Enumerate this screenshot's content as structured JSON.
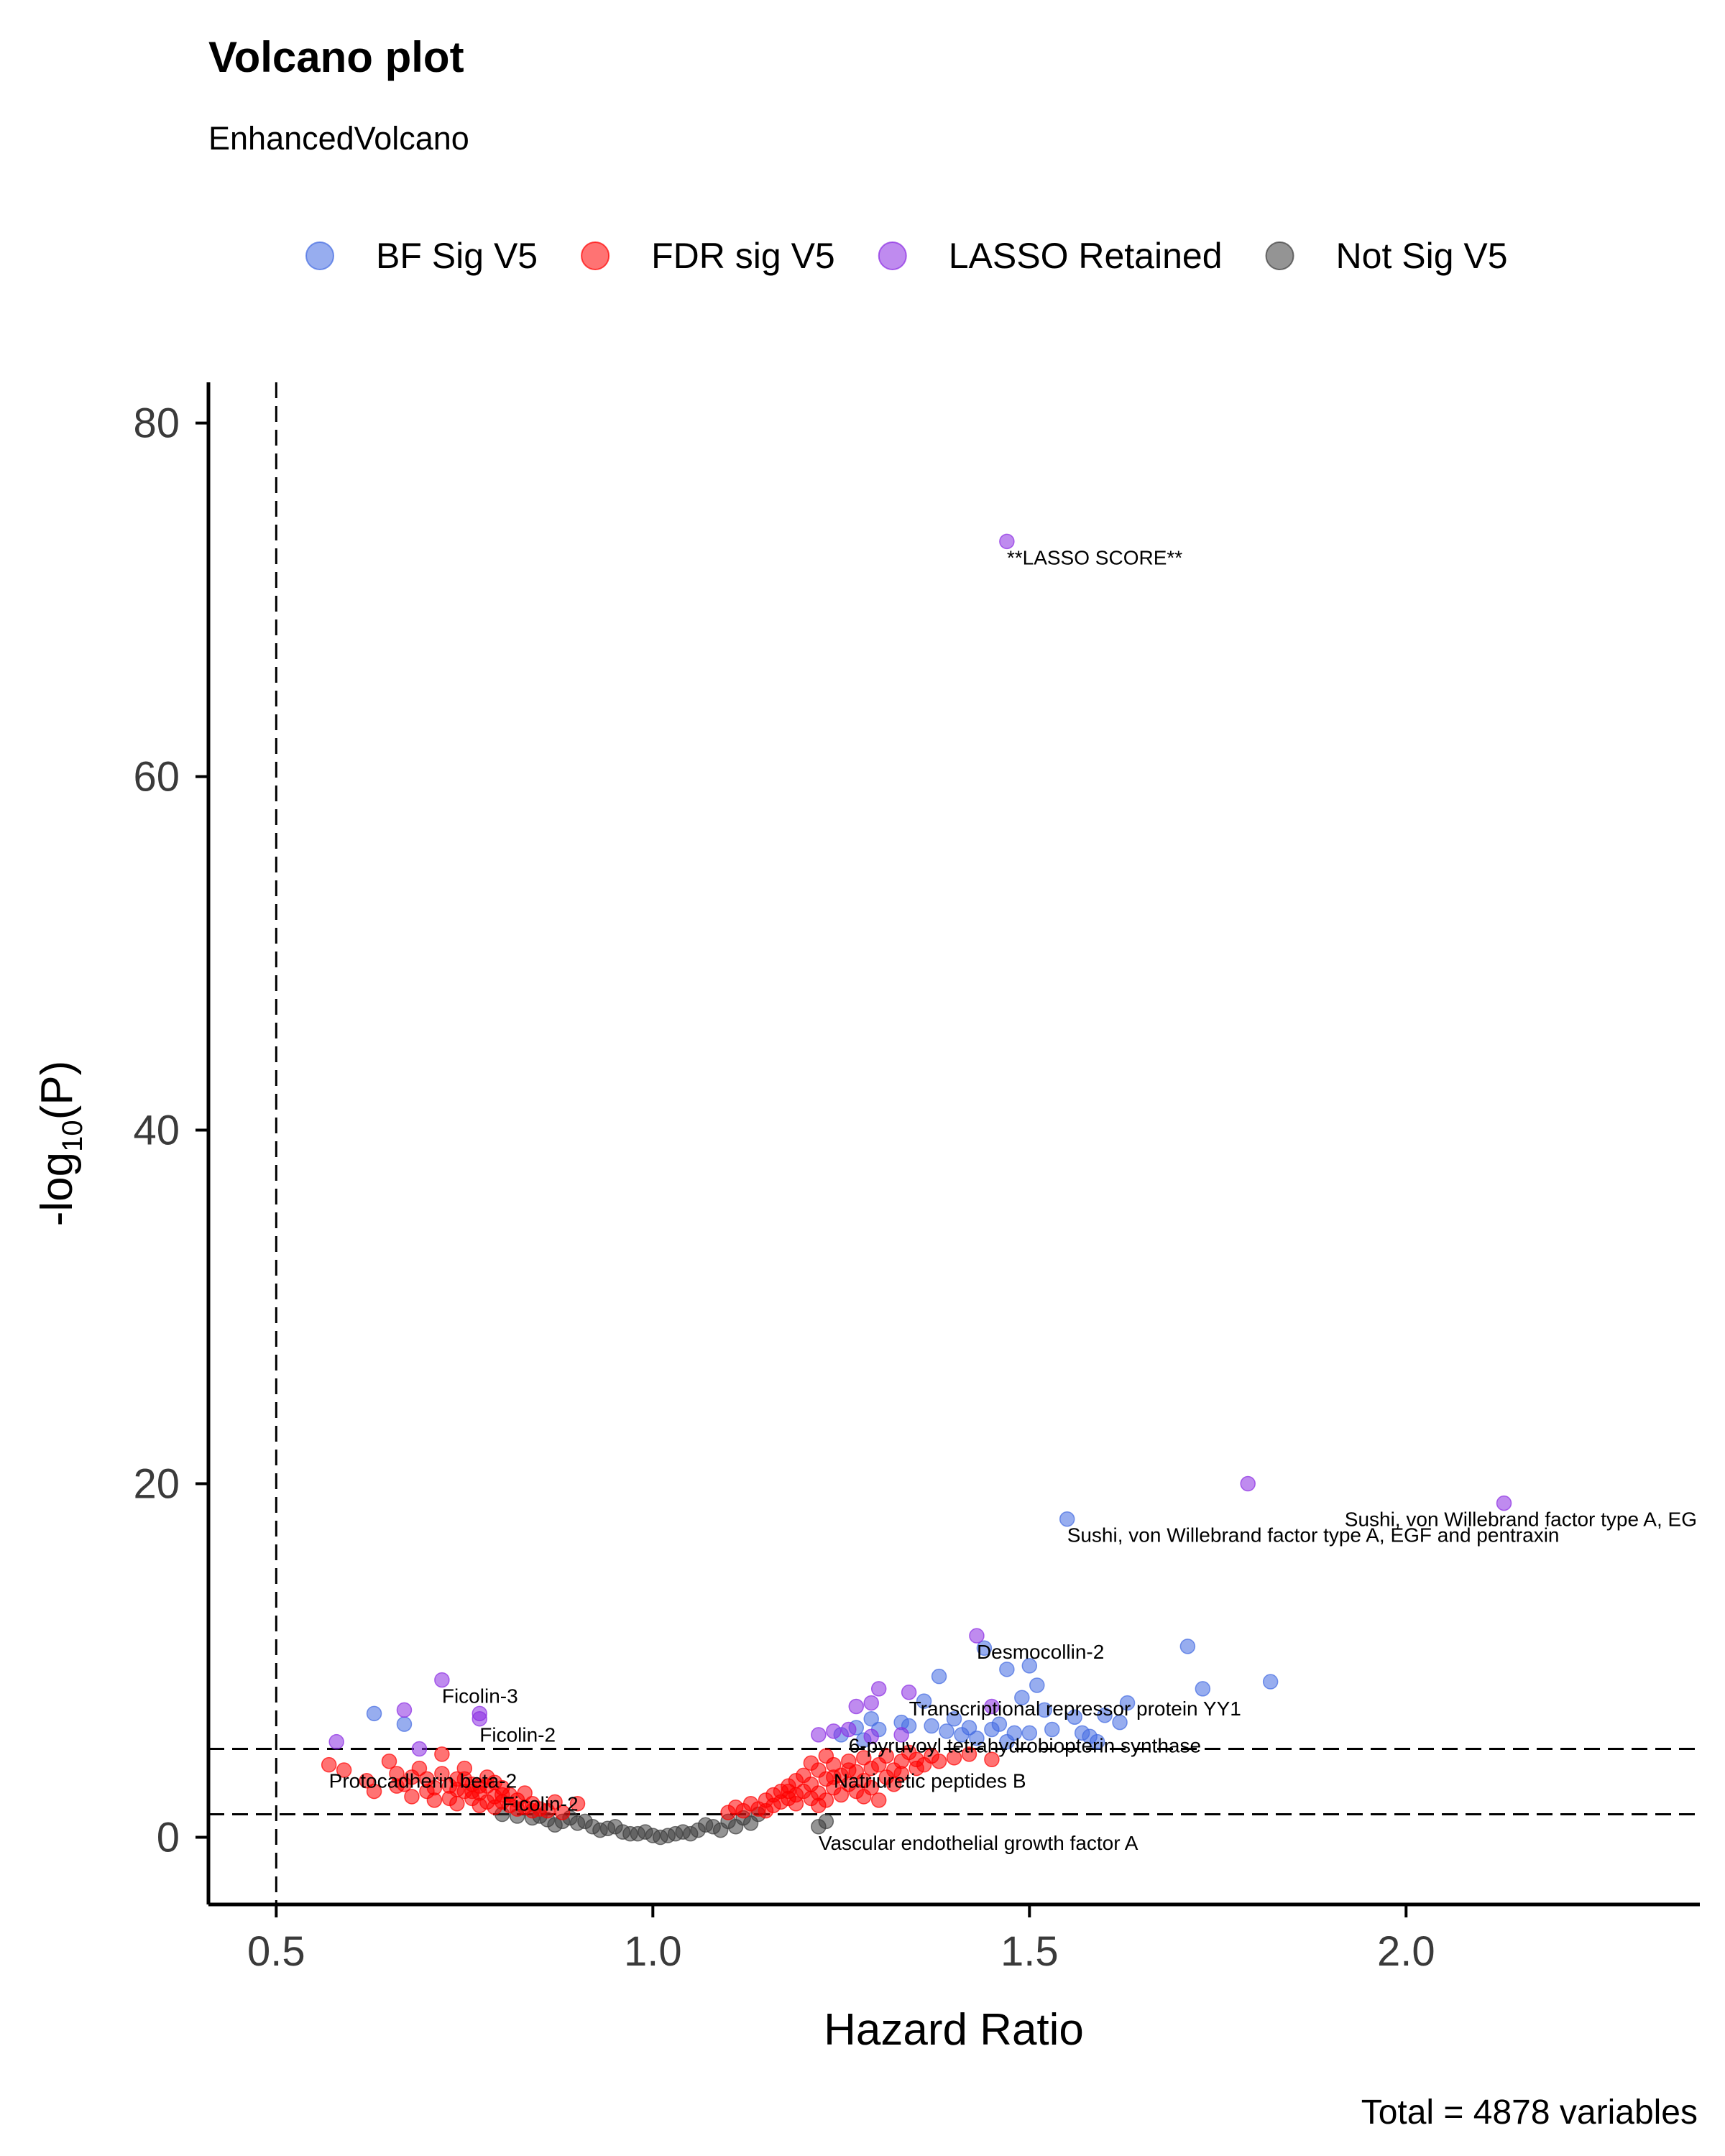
{
  "chart_data": {
    "type": "scatter",
    "title": "Volcano plot",
    "subtitle": "EnhancedVolcano",
    "xlabel": "Hazard Ratio",
    "ylabel_main": "-log",
    "ylabel_sub": "10",
    "ylabel_tail": "(P)",
    "caption": "Total = 4878 variables",
    "xlim": [
      0.41,
      2.39
    ],
    "ylim": [
      -3.8,
      82.3
    ],
    "x_ticks": [
      0.5,
      1.0,
      1.5,
      2.0
    ],
    "x_tick_labels": [
      "0.5",
      "1.0",
      "1.5",
      "2.0"
    ],
    "y_ticks": [
      0,
      20,
      40,
      60,
      80
    ],
    "y_tick_labels": [
      "0",
      "20",
      "40",
      "60",
      "80"
    ],
    "vlines": [
      0.5
    ],
    "hlines": [
      1.3,
      5.0
    ],
    "grid": false,
    "legend_position": "top",
    "series": [
      {
        "name": "BF Sig V5",
        "color": "#4169E1",
        "points": [
          [
            0.63,
            7.0
          ],
          [
            0.67,
            6.4
          ],
          [
            1.38,
            9.1
          ],
          [
            1.44,
            10.7
          ],
          [
            1.47,
            9.5
          ],
          [
            1.5,
            9.7
          ],
          [
            1.51,
            8.6
          ],
          [
            1.49,
            7.9
          ],
          [
            1.52,
            7.2
          ],
          [
            1.55,
            18.0
          ],
          [
            1.56,
            6.8
          ],
          [
            1.58,
            5.7
          ],
          [
            1.6,
            6.9
          ],
          [
            1.63,
            7.6
          ],
          [
            1.62,
            6.5
          ],
          [
            1.71,
            10.8
          ],
          [
            1.73,
            8.4
          ],
          [
            1.82,
            8.8
          ],
          [
            1.36,
            7.7
          ],
          [
            1.4,
            6.7
          ],
          [
            1.42,
            6.2
          ],
          [
            1.46,
            6.4
          ],
          [
            1.48,
            5.9
          ],
          [
            1.53,
            6.1
          ],
          [
            1.34,
            6.3
          ],
          [
            1.3,
            6.1
          ],
          [
            1.28,
            5.5
          ],
          [
            1.27,
            6.2
          ],
          [
            1.25,
            5.8
          ],
          [
            1.39,
            6.0
          ],
          [
            1.43,
            5.6
          ],
          [
            1.47,
            5.4
          ],
          [
            1.5,
            5.9
          ],
          [
            1.45,
            6.1
          ],
          [
            1.37,
            6.3
          ],
          [
            1.57,
            5.9
          ],
          [
            1.59,
            5.4
          ],
          [
            1.29,
            6.7
          ],
          [
            1.33,
            6.5
          ],
          [
            1.41,
            5.8
          ]
        ]
      },
      {
        "name": "FDR sig V5",
        "color": "#FF0000",
        "points": [
          [
            0.57,
            4.1
          ],
          [
            0.59,
            3.8
          ],
          [
            0.62,
            3.2
          ],
          [
            0.63,
            2.6
          ],
          [
            0.65,
            4.3
          ],
          [
            0.66,
            3.6
          ],
          [
            0.67,
            3.0
          ],
          [
            0.68,
            2.3
          ],
          [
            0.69,
            3.9
          ],
          [
            0.7,
            3.3
          ],
          [
            0.7,
            2.6
          ],
          [
            0.71,
            2.1
          ],
          [
            0.72,
            3.6
          ],
          [
            0.72,
            4.7
          ],
          [
            0.73,
            2.9
          ],
          [
            0.73,
            2.2
          ],
          [
            0.74,
            3.3
          ],
          [
            0.74,
            1.9
          ],
          [
            0.75,
            2.6
          ],
          [
            0.75,
            3.9
          ],
          [
            0.76,
            2.2
          ],
          [
            0.76,
            3.0
          ],
          [
            0.77,
            1.8
          ],
          [
            0.77,
            2.5
          ],
          [
            0.78,
            3.4
          ],
          [
            0.78,
            2.0
          ],
          [
            0.79,
            2.3
          ],
          [
            0.79,
            1.7
          ],
          [
            0.8,
            2.8
          ],
          [
            0.8,
            2.0
          ],
          [
            0.81,
            1.8
          ],
          [
            0.81,
            2.4
          ],
          [
            0.82,
            1.6
          ],
          [
            0.82,
            2.1
          ],
          [
            0.83,
            1.7
          ],
          [
            0.83,
            2.5
          ],
          [
            0.84,
            1.5
          ],
          [
            0.84,
            1.9
          ],
          [
            0.85,
            1.6
          ],
          [
            0.86,
            1.5
          ],
          [
            0.87,
            2.0
          ],
          [
            0.88,
            1.4
          ],
          [
            0.9,
            1.9
          ],
          [
            0.66,
            2.9
          ],
          [
            0.68,
            3.4
          ],
          [
            0.71,
            2.8
          ],
          [
            0.74,
            2.7
          ],
          [
            0.76,
            2.6
          ],
          [
            0.78,
            2.9
          ],
          [
            0.8,
            2.4
          ],
          [
            0.79,
            3.1
          ],
          [
            0.77,
            2.9
          ],
          [
            0.75,
            3.3
          ],
          [
            1.1,
            1.4
          ],
          [
            1.11,
            1.7
          ],
          [
            1.12,
            1.5
          ],
          [
            1.13,
            1.9
          ],
          [
            1.14,
            1.6
          ],
          [
            1.15,
            2.1
          ],
          [
            1.15,
            1.5
          ],
          [
            1.16,
            2.4
          ],
          [
            1.16,
            1.8
          ],
          [
            1.17,
            2.6
          ],
          [
            1.17,
            2.0
          ],
          [
            1.18,
            2.9
          ],
          [
            1.18,
            2.2
          ],
          [
            1.19,
            3.2
          ],
          [
            1.19,
            1.9
          ],
          [
            1.2,
            2.6
          ],
          [
            1.2,
            3.5
          ],
          [
            1.21,
            2.2
          ],
          [
            1.21,
            3.0
          ],
          [
            1.22,
            3.8
          ],
          [
            1.22,
            2.5
          ],
          [
            1.23,
            3.3
          ],
          [
            1.23,
            2.1
          ],
          [
            1.24,
            4.1
          ],
          [
            1.24,
            2.8
          ],
          [
            1.25,
            3.5
          ],
          [
            1.25,
            2.4
          ],
          [
            1.26,
            4.3
          ],
          [
            1.26,
            3.0
          ],
          [
            1.27,
            3.7
          ],
          [
            1.27,
            2.6
          ],
          [
            1.28,
            4.5
          ],
          [
            1.28,
            3.2
          ],
          [
            1.29,
            3.9
          ],
          [
            1.29,
            2.8
          ],
          [
            1.3,
            4.1
          ],
          [
            1.31,
            3.4
          ],
          [
            1.31,
            4.6
          ],
          [
            1.32,
            3.0
          ],
          [
            1.33,
            4.3
          ],
          [
            1.33,
            3.6
          ],
          [
            1.34,
            4.8
          ],
          [
            1.35,
            3.9
          ],
          [
            1.35,
            4.4
          ],
          [
            1.36,
            4.1
          ],
          [
            1.37,
            4.6
          ],
          [
            1.38,
            4.3
          ],
          [
            1.4,
            4.5
          ],
          [
            1.42,
            4.7
          ],
          [
            1.45,
            4.4
          ],
          [
            1.3,
            2.1
          ],
          [
            1.21,
            4.2
          ],
          [
            1.23,
            4.6
          ],
          [
            1.19,
            2.4
          ],
          [
            1.26,
            3.8
          ],
          [
            1.24,
            3.4
          ],
          [
            1.28,
            2.3
          ],
          [
            1.32,
            3.8
          ],
          [
            1.22,
            1.8
          ],
          [
            1.18,
            2.6
          ]
        ]
      },
      {
        "name": "LASSO Retained",
        "color": "#8A2BE2",
        "points": [
          [
            1.47,
            73.3
          ],
          [
            1.79,
            20.0
          ],
          [
            2.13,
            18.9
          ],
          [
            1.43,
            11.4
          ],
          [
            0.72,
            8.9
          ],
          [
            1.3,
            8.4
          ],
          [
            1.34,
            8.2
          ],
          [
            1.27,
            7.4
          ],
          [
            1.29,
            7.6
          ],
          [
            0.67,
            7.2
          ],
          [
            0.77,
            6.7
          ],
          [
            1.24,
            6.0
          ],
          [
            1.26,
            6.1
          ],
          [
            1.29,
            5.7
          ],
          [
            1.33,
            5.8
          ],
          [
            1.45,
            7.4
          ],
          [
            0.58,
            5.4
          ],
          [
            0.69,
            5.0
          ],
          [
            1.22,
            5.8
          ],
          [
            0.77,
            7.0
          ]
        ]
      },
      {
        "name": "Not Sig V5",
        "color": "#3C3C3C",
        "points": [
          [
            0.8,
            1.3
          ],
          [
            0.82,
            1.2
          ],
          [
            0.84,
            1.1
          ],
          [
            0.86,
            1.0
          ],
          [
            0.88,
            0.9
          ],
          [
            0.9,
            0.8
          ],
          [
            0.92,
            0.6
          ],
          [
            0.94,
            0.5
          ],
          [
            0.96,
            0.3
          ],
          [
            0.98,
            0.2
          ],
          [
            1.0,
            0.1
          ],
          [
            1.02,
            0.1
          ],
          [
            1.04,
            0.3
          ],
          [
            1.06,
            0.4
          ],
          [
            1.08,
            0.6
          ],
          [
            1.1,
            0.9
          ],
          [
            1.12,
            1.1
          ],
          [
            1.14,
            1.3
          ],
          [
            0.87,
            0.7
          ],
          [
            0.91,
            0.9
          ],
          [
            0.95,
            0.6
          ],
          [
            0.99,
            0.3
          ],
          [
            1.03,
            0.2
          ],
          [
            1.07,
            0.7
          ],
          [
            1.11,
            0.6
          ],
          [
            1.22,
            0.6
          ],
          [
            1.23,
            0.9
          ],
          [
            0.93,
            0.4
          ],
          [
            0.97,
            0.2
          ],
          [
            1.01,
            0.0
          ],
          [
            1.05,
            0.2
          ],
          [
            1.09,
            0.4
          ],
          [
            0.85,
            1.2
          ],
          [
            0.89,
            1.1
          ],
          [
            1.13,
            0.8
          ]
        ]
      }
    ],
    "labels": [
      {
        "text": "**LASSO SCORE**",
        "x": 1.47,
        "y": 73.3
      },
      {
        "text": "Sushi, von Willebrand factor type A, EG",
        "x": 2.13,
        "y": 18.9
      },
      {
        "text": "Sushi, von Willebrand factor type A, EGF and pentraxin",
        "x": 1.55,
        "y": 18.0
      },
      {
        "text": "Desmocollin-2",
        "x": 1.43,
        "y": 11.4
      },
      {
        "text": "Transcriptional repressor protein YY1",
        "x": 1.34,
        "y": 8.2
      },
      {
        "text": "6-pyruvoyl tetrahydrobiopterin synthase",
        "x": 1.26,
        "y": 6.1
      },
      {
        "text": "Natriuretic peptides B",
        "x": 1.24,
        "y": 4.1
      },
      {
        "text": "Vascular endothelial growth factor A",
        "x": 1.22,
        "y": 0.6
      },
      {
        "text": "Ficolin-3",
        "x": 0.72,
        "y": 8.9
      },
      {
        "text": "Ficolin-2",
        "x": 0.77,
        "y": 6.7
      },
      {
        "text": "Protocadherin beta-2",
        "x": 0.57,
        "y": 4.1
      },
      {
        "text": "Ficolin-2",
        "x": 0.8,
        "y": 2.8
      }
    ]
  }
}
